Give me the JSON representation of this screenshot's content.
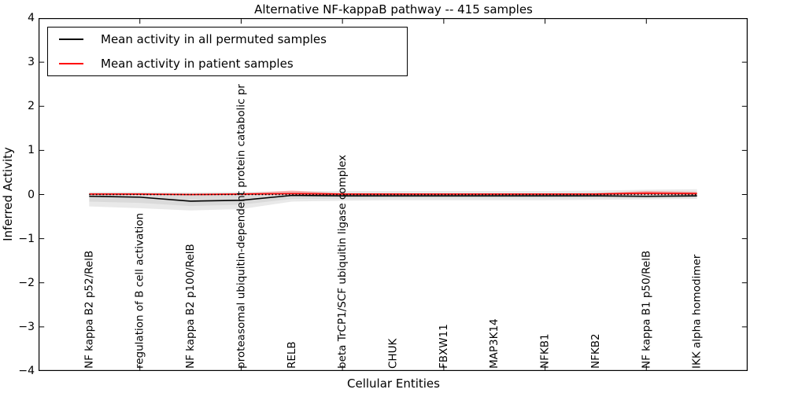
{
  "title": "Alternative NF-kappaB pathway -- 415 samples",
  "axes": {
    "yticks": [
      {
        "v": 4,
        "label": "4"
      },
      {
        "v": 3,
        "label": "3"
      },
      {
        "v": 2,
        "label": "2"
      },
      {
        "v": 1,
        "label": "1"
      },
      {
        "v": 0,
        "label": "0"
      },
      {
        "v": -1,
        "label": "−1"
      },
      {
        "v": -2,
        "label": "−2"
      },
      {
        "v": -3,
        "label": "−3"
      },
      {
        "v": -4,
        "label": "−4"
      }
    ],
    "xtick_positions": [
      1,
      3,
      5,
      7,
      9,
      11
    ]
  },
  "legend": {
    "entries": [
      {
        "label": "Mean activity in all permuted samples",
        "color": "#000000"
      },
      {
        "label": "Mean activity in patient samples",
        "color": "#ff0000"
      }
    ]
  },
  "chart_data": {
    "type": "line",
    "title": "Alternative NF-kappaB pathway -- 415 samples",
    "xlabel": "Cellular Entities",
    "ylabel": "Inferred Activity",
    "ylim": [
      -4,
      4
    ],
    "xlim": [
      -1,
      13
    ],
    "grid": false,
    "legend_position": "upper left",
    "categories": [
      "NF kappa B2 p52/RelB",
      "regulation of B cell activation",
      "NF kappa B2 p100/RelB",
      "proteasomal ubiquitin-dependent protein catabolic pr",
      "RELB",
      "beta TrCP1/SCF ubiquitin ligase complex",
      "CHUK",
      "FBXW11",
      "MAP3K14",
      "NFKB1",
      "NFKB2",
      "NF kappa B1 p50/RelB",
      "IKK alpha homodimer"
    ],
    "x": [
      0,
      1,
      2,
      3,
      4,
      5,
      6,
      7,
      8,
      9,
      10,
      11,
      12
    ],
    "series": [
      {
        "name": "Mean activity in all permuted samples",
        "color": "#000000",
        "style": "solid",
        "width": 1.6,
        "values": [
          -0.04,
          -0.06,
          -0.15,
          -0.13,
          -0.02,
          -0.03,
          -0.03,
          -0.03,
          -0.03,
          -0.03,
          -0.03,
          -0.04,
          -0.03
        ]
      },
      {
        "name": "Mean activity in patient samples",
        "color": "#ff0000",
        "style": "solid",
        "width": 1.6,
        "values": [
          0.01,
          0.01,
          0.0,
          0.01,
          0.02,
          0.01,
          0.01,
          0.01,
          0.01,
          0.01,
          0.01,
          0.03,
          0.02
        ]
      },
      {
        "name": "zero reference line",
        "color": "#000000",
        "style": "dotted",
        "width": 1.4,
        "values": [
          0,
          0,
          0,
          0,
          0,
          0,
          0,
          0,
          0,
          0,
          0,
          0,
          0
        ]
      }
    ],
    "bands": [
      {
        "name": "permuted-samples-band-outer",
        "color": "#bfbfbf",
        "opacity": 0.35,
        "upper": [
          0.06,
          0.06,
          0.05,
          0.06,
          0.07,
          0.08,
          0.08,
          0.08,
          0.08,
          0.08,
          0.09,
          0.11,
          0.12
        ],
        "lower": [
          -0.27,
          -0.31,
          -0.36,
          -0.33,
          -0.16,
          -0.14,
          -0.13,
          -0.13,
          -0.13,
          -0.13,
          -0.12,
          -0.11,
          -0.1
        ]
      },
      {
        "name": "permuted-samples-band-inner",
        "color": "#bfbfbf",
        "opacity": 0.35,
        "upper": [
          0.02,
          0.02,
          0.01,
          0.02,
          0.03,
          0.03,
          0.03,
          0.03,
          0.03,
          0.03,
          0.04,
          0.05,
          0.05
        ],
        "lower": [
          -0.16,
          -0.19,
          -0.26,
          -0.23,
          -0.1,
          -0.09,
          -0.08,
          -0.08,
          -0.08,
          -0.08,
          -0.08,
          -0.08,
          -0.07
        ]
      },
      {
        "name": "patient-samples-band",
        "color": "#ff0000",
        "opacity": 0.28,
        "upper": [
          0.03,
          0.03,
          0.02,
          0.03,
          0.09,
          0.03,
          0.03,
          0.02,
          0.02,
          0.02,
          0.03,
          0.08,
          0.06
        ],
        "lower": [
          -0.01,
          -0.01,
          -0.02,
          -0.01,
          0.0,
          -0.01,
          -0.01,
          -0.01,
          -0.01,
          -0.01,
          -0.01,
          0.0,
          -0.01
        ]
      }
    ]
  }
}
